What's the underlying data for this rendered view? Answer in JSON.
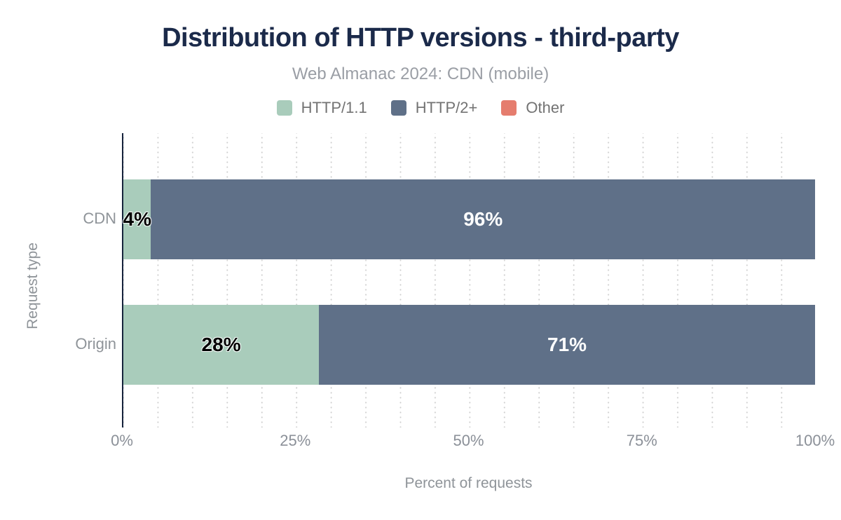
{
  "title": "Distribution of HTTP versions - third-party",
  "subtitle": "Web Almanac 2024: CDN (mobile)",
  "colors": {
    "title_navy": "#1b2a4a",
    "axis_line": "#16233c",
    "http11_green": "#a9ccbb",
    "http2_slate": "#5f7088",
    "other_red": "#e57d6e",
    "grid_dot": "#cdcdcd",
    "muted_text": "#8f9499"
  },
  "legend": {
    "items": [
      {
        "label": "HTTP/1.1",
        "color": "#a9ccbb"
      },
      {
        "label": "HTTP/2+",
        "color": "#5f7088"
      },
      {
        "label": "Other",
        "color": "#e57d6e"
      }
    ]
  },
  "x_axis": {
    "label": "Percent of requests",
    "ticks": [
      "0%",
      "25%",
      "50%",
      "75%",
      "100%"
    ]
  },
  "y_axis": {
    "label": "Request type",
    "categories": [
      "CDN",
      "Origin"
    ]
  },
  "bars": [
    {
      "category": "CDN",
      "segments": [
        {
          "name": "HTTP/1.1",
          "label": "4%",
          "value": 4,
          "color": "#a9ccbb",
          "text_color": "dark"
        },
        {
          "name": "HTTP/2+",
          "label": "96%",
          "value": 96,
          "color": "#5f7088",
          "text_color": "light"
        }
      ]
    },
    {
      "category": "Origin",
      "segments": [
        {
          "name": "HTTP/1.1",
          "label": "28%",
          "value": 28,
          "color": "#a9ccbb",
          "text_color": "dark"
        },
        {
          "name": "HTTP/2+",
          "label": "71%",
          "value": 71,
          "color": "#5f7088",
          "text_color": "light"
        }
      ]
    }
  ],
  "chart_data": {
    "type": "bar",
    "orientation": "horizontal",
    "stacked": true,
    "title": "Distribution of HTTP versions - third-party",
    "subtitle": "Web Almanac 2024: CDN (mobile)",
    "categories": [
      "CDN",
      "Origin"
    ],
    "series": [
      {
        "name": "HTTP/1.1",
        "values": [
          4,
          28
        ],
        "color": "#a9ccbb"
      },
      {
        "name": "HTTP/2+",
        "values": [
          96,
          71
        ],
        "color": "#5f7088"
      },
      {
        "name": "Other",
        "values": [
          0,
          0
        ],
        "color": "#e57d6e"
      }
    ],
    "data_labels": [
      [
        "4%",
        "96%"
      ],
      [
        "28%",
        "71%"
      ]
    ],
    "xlabel": "Percent of requests",
    "ylabel": "Request type",
    "xlim": [
      0,
      100
    ],
    "x_tick_labels": [
      "0%",
      "25%",
      "50%",
      "75%",
      "100%"
    ],
    "grid": "vertical dotted lines every 5%",
    "legend_position": "top center"
  }
}
